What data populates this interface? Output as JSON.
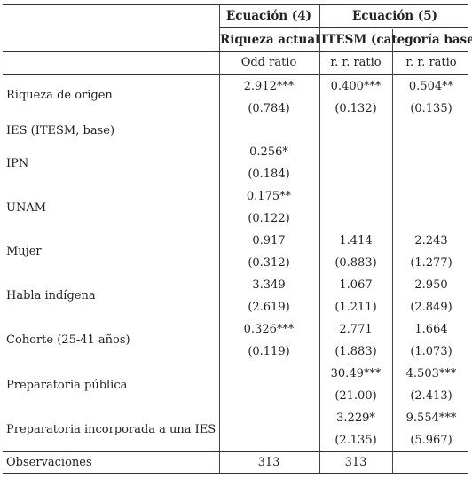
{
  "headers": {
    "eq4": "Ecuación (4)",
    "eq5": "Ecuación (5)",
    "sub_riqueza": "Riqueza actual",
    "sub_itesm": "ITESM (categoría base)",
    "stat1": "Odd ratio",
    "stat2": "r. r. ratio",
    "stat3": "r. r. ratio"
  },
  "rows": [
    {
      "label": "Riqueza de origen",
      "c1": "2.912***",
      "c2": "0.400***",
      "c3": "0.504**",
      "s1": "(0.784)",
      "s2": "(0.132)",
      "s3": "(0.135)"
    },
    {
      "label": "IES (ITESM, base)"
    },
    {
      "label": "IPN",
      "c1": "0.256*",
      "s1": "(0.184)"
    },
    {
      "label": "UNAM",
      "c1": "0.175**",
      "s1": "(0.122)"
    },
    {
      "label": "Mujer",
      "c1": "0.917",
      "c2": "1.414",
      "c3": "2.243",
      "s1": "(0.312)",
      "s2": "(0.883)",
      "s3": "(1.277)"
    },
    {
      "label": "Habla indígena",
      "c1": "3.349",
      "c2": "1.067",
      "c3": "2.950",
      "s1": "(2.619)",
      "s2": "(1.211)",
      "s3": "(2.849)"
    },
    {
      "label": "Cohorte (25-41 años)",
      "c1": "0.326***",
      "c2": "2.771",
      "c3": "1.664",
      "s1": "(0.119)",
      "s2": "(1.883)",
      "s3": "(1.073)"
    },
    {
      "label": "Preparatoria pública",
      "c2": "30.49***",
      "c3": "4.503***",
      "s2": "(21.00)",
      "s3": "(2.413)"
    },
    {
      "label": "Preparatoria incorporada a una IES",
      "c2": "3.229*",
      "c3": "9.554***",
      "s2": "(2.135)",
      "s3": "(5.967)"
    },
    {
      "label": "Observaciones",
      "c1": "313",
      "c2": "313"
    }
  ]
}
